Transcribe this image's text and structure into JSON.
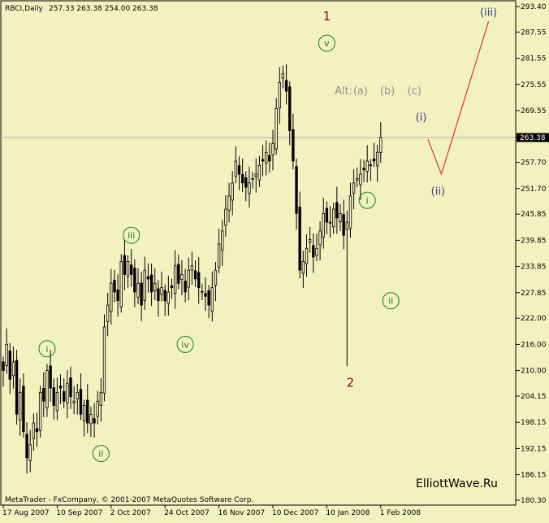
{
  "header": {
    "symbol": "RBCI,Daily",
    "ohlc": "257.33 263.38 254.00 263.38"
  },
  "watermark": "ElliottWave.Ru",
  "copyright": "MetaTrader - FxCompany, © 2001-2007 MetaQuotes Software Corp.",
  "colors": {
    "background": "#f2f2c0",
    "candles": "#000000",
    "label_green": "#1a7a1a",
    "label_dark_red": "#7a0d0d",
    "label_gray": "#909090",
    "label_navy": "#3c3c90",
    "projection_red": "#e03030"
  },
  "chart_data": {
    "type": "candlestick",
    "instrument": "RBCI",
    "timeframe": "Daily",
    "ylim": [
      180.3,
      293.4
    ],
    "y_ticks": [
      "293.40",
      "287.55",
      "281.55",
      "275.55",
      "269.55",
      "263.38",
      "257.70",
      "251.70",
      "245.85",
      "239.85",
      "233.85",
      "227.85",
      "222.00",
      "216.00",
      "210.00",
      "204.15",
      "198.15",
      "192.15",
      "186.15",
      "180.30"
    ],
    "current_price": "263.38",
    "x_ticks": [
      {
        "bar": 0,
        "label": "17 Aug 2007"
      },
      {
        "bar": 16,
        "label": "10 Sep 2007"
      },
      {
        "bar": 32,
        "label": "2 Oct 2007"
      },
      {
        "bar": 48,
        "label": "24 Oct 2007"
      },
      {
        "bar": 64,
        "label": "16 Nov 2007"
      },
      {
        "bar": 80,
        "label": "10 Dec 2007"
      },
      {
        "bar": 96,
        "label": "10 Jan 2008"
      },
      {
        "bar": 112,
        "label": "1 Feb 2008"
      }
    ],
    "closes": [
      210,
      216,
      208,
      212,
      200,
      205,
      196,
      190,
      193,
      198,
      196,
      205,
      203,
      210,
      206,
      202,
      205,
      206,
      203,
      207,
      204,
      203,
      205,
      200,
      202,
      198,
      200,
      198,
      203,
      205,
      220,
      225,
      230,
      228,
      226,
      235,
      232,
      235,
      232,
      228,
      230,
      225,
      233,
      231,
      228,
      230,
      226,
      229,
      226,
      228,
      229,
      234,
      230,
      232,
      228,
      233,
      234,
      231,
      229,
      228,
      227,
      225,
      229,
      233,
      239,
      242,
      247,
      250,
      253,
      258,
      255,
      253,
      252,
      253,
      254,
      255,
      257,
      258,
      260,
      258,
      262,
      270,
      276,
      278,
      274,
      265,
      258,
      246,
      233,
      235,
      238,
      240,
      236,
      238,
      242,
      246,
      244,
      244,
      247,
      245,
      246,
      241,
      244,
      250,
      253,
      254,
      255,
      256,
      258,
      257,
      258,
      260,
      263.38
    ],
    "annotations": [
      {
        "text": "i",
        "style": "circle",
        "color": "label_green",
        "bar": 13,
        "price": 215
      },
      {
        "text": "ii",
        "style": "circle",
        "color": "label_green",
        "bar": 29,
        "price": 191
      },
      {
        "text": "iii",
        "style": "circle",
        "color": "label_green",
        "bar": 38,
        "price": 241
      },
      {
        "text": "iv",
        "style": "circle",
        "color": "label_green",
        "bar": 54,
        "price": 216
      },
      {
        "text": "v",
        "style": "circle",
        "color": "label_green",
        "bar": 96,
        "price": 285
      },
      {
        "text": "1",
        "style": "plain",
        "color": "label_dark_red",
        "bar": 96,
        "price": 291
      },
      {
        "text": "2",
        "style": "plain",
        "color": "label_dark_red",
        "bar": 103,
        "price": 207
      },
      {
        "text": "Alt:",
        "style": "plain",
        "color": "label_gray",
        "bar": 101,
        "price": 274
      },
      {
        "text": "(a)",
        "style": "plain",
        "color": "label_gray",
        "bar": 106,
        "price": 274
      },
      {
        "text": "(b)",
        "style": "plain",
        "color": "label_gray",
        "bar": 114,
        "price": 274
      },
      {
        "text": "(c)",
        "style": "plain",
        "color": "label_gray",
        "bar": 122,
        "price": 274
      },
      {
        "text": "i",
        "style": "circle",
        "color": "label_green",
        "bar": 108,
        "price": 249
      },
      {
        "text": "ii",
        "style": "circle",
        "color": "label_green",
        "bar": 115,
        "price": 226
      },
      {
        "text": "(i)",
        "style": "plain",
        "color": "label_navy",
        "bar": 124,
        "price": 268
      },
      {
        "text": "(ii)",
        "style": "plain",
        "color": "label_navy",
        "bar": 129,
        "price": 251
      },
      {
        "text": "(iii)",
        "style": "plain",
        "color": "label_navy",
        "bar": 144,
        "price": 292
      }
    ],
    "projection": [
      {
        "bar": 126,
        "price": 263
      },
      {
        "bar": 130,
        "price": 255
      },
      {
        "bar": 144,
        "price": 290
      }
    ]
  }
}
